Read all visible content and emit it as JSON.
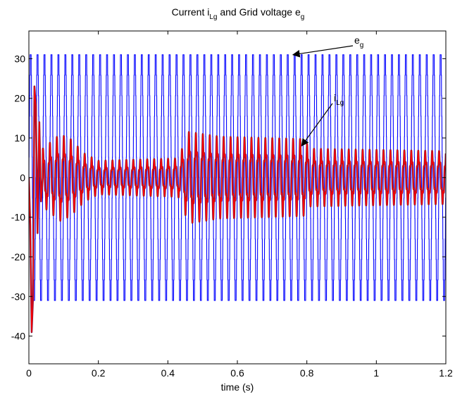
{
  "chart_data": {
    "type": "line",
    "title": {
      "prefix": "Current i",
      "i_sub": "Lg",
      "middle": "and  Grid voltage e",
      "e_sub": "g"
    },
    "xlabel": "time (s)",
    "ylabel": "",
    "xlim": [
      0,
      1.2
    ],
    "ylim": [
      -47,
      37
    ],
    "x_ticks": [
      0,
      0.2,
      0.4,
      0.6,
      0.8,
      1,
      1.2
    ],
    "x_tick_labels": [
      "0",
      "0.2",
      "0.4",
      "0.6",
      "0.8",
      "1",
      "1.2"
    ],
    "y_ticks": [
      30,
      20,
      10,
      0,
      -10,
      -20,
      -30,
      -40
    ],
    "y_tick_labels": [
      "30",
      "20",
      "10",
      "0",
      "-10",
      "-20",
      "-30",
      "-40"
    ],
    "grid": false,
    "series": [
      {
        "name": "e_g",
        "color": "#0000ff",
        "waveform": "stepped sine",
        "amplitude": 31,
        "frequency_hz": 50,
        "t_range": [
          0,
          1.2
        ]
      },
      {
        "name": "i_Lg",
        "color": "#ff0000",
        "outline_color": "#6a1a4a",
        "waveform": "sinusoid, phase-shifted from e_g",
        "frequency_hz": 50,
        "t_range": [
          0,
          1.2
        ],
        "initial_transient": [
          {
            "t": 0.0,
            "y": 0
          },
          {
            "t": 0.004,
            "y": -12
          },
          {
            "t": 0.008,
            "y": -39
          },
          {
            "t": 0.012,
            "y": -30
          },
          {
            "t": 0.016,
            "y": 23
          },
          {
            "t": 0.02,
            "y": 18
          },
          {
            "t": 0.025,
            "y": -14
          },
          {
            "t": 0.03,
            "y": 14
          },
          {
            "t": 0.035,
            "y": -6
          },
          {
            "t": 0.04,
            "y": 0
          }
        ],
        "envelope": [
          {
            "t": 0.04,
            "amp": 6
          },
          {
            "t": 0.09,
            "amp": 9
          },
          {
            "t": 0.12,
            "amp": 8
          },
          {
            "t": 0.16,
            "amp": 5
          },
          {
            "t": 0.2,
            "amp": 3.5
          },
          {
            "t": 0.43,
            "amp": 4
          },
          {
            "t": 0.46,
            "amp": 9.5
          },
          {
            "t": 0.55,
            "amp": 8.5
          },
          {
            "t": 0.79,
            "amp": 8
          },
          {
            "t": 0.81,
            "amp": 6
          },
          {
            "t": 1.2,
            "amp": 5.5
          }
        ]
      }
    ],
    "annotations": [
      {
        "text": "e",
        "sub": "g",
        "target_series": "e_g",
        "points_to": {
          "t": 0.76,
          "y": 31
        }
      },
      {
        "text": "i",
        "sub": "Lg",
        "target_series": "i_Lg",
        "points_to": {
          "t": 0.785,
          "y": 8
        }
      }
    ]
  }
}
